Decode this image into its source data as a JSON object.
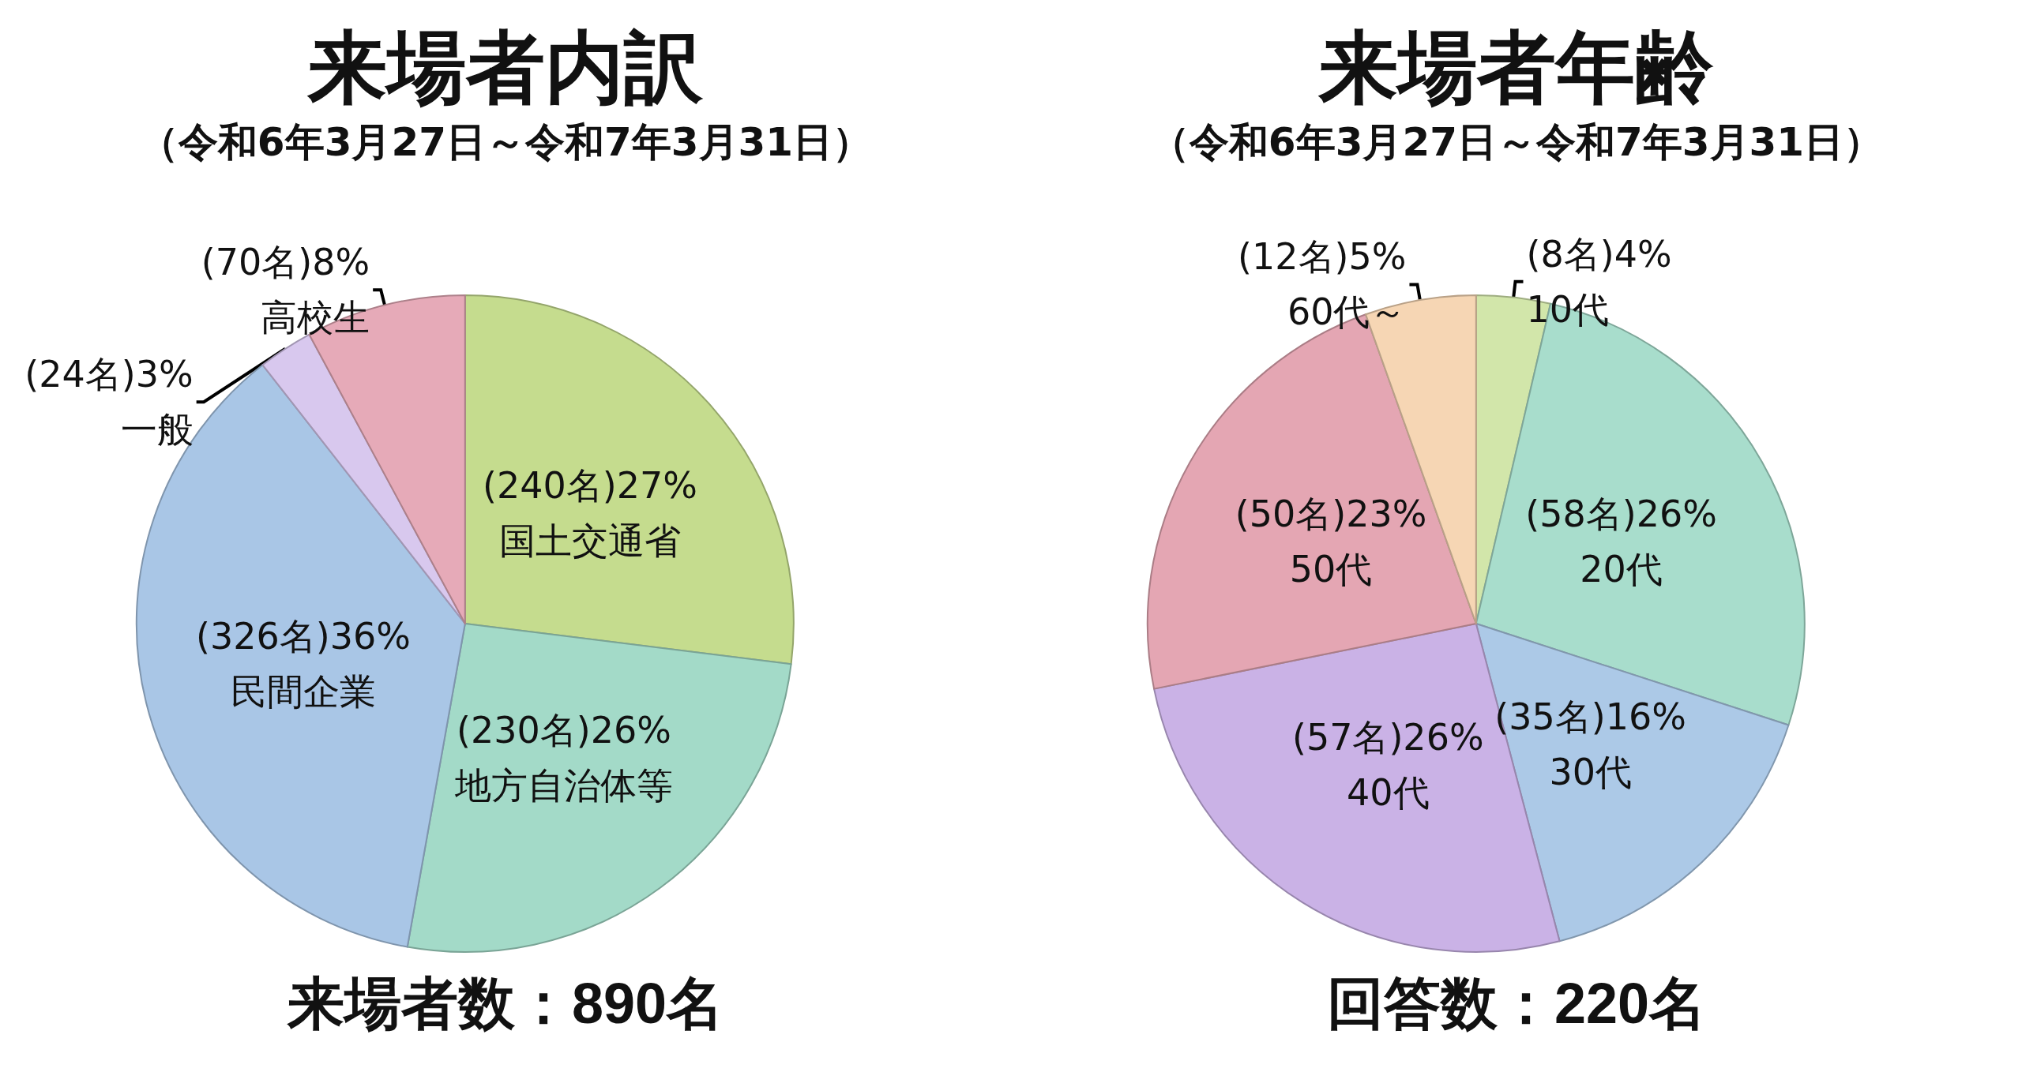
{
  "chart_data": [
    {
      "type": "pie",
      "title": "来場者内訳",
      "subtitle": "（令和6年3月27日～令和7年3月31日）",
      "categories": [
        "国土交通省",
        "地方自治体等",
        "民間企業",
        "一般",
        "高校生"
      ],
      "values": [
        240,
        230,
        326,
        24,
        70
      ],
      "value_labels": [
        "(240名)27%",
        "(230名)26%",
        "(326名)36%",
        "(24名)3%",
        "(70名)8%"
      ],
      "colors": [
        "#c5dc8e",
        "#a3dac8",
        "#a9c6e6",
        "#d8c8ee",
        "#e6aab8"
      ],
      "annotations": [
        "来場者数：890名"
      ],
      "legend": false
    },
    {
      "type": "pie",
      "title": "来場者年齢",
      "subtitle": "（令和6年3月27日～令和7年3月31日）",
      "categories": [
        "10代",
        "20代",
        "30代",
        "40代",
        "50代",
        "60代～"
      ],
      "values": [
        8,
        58,
        35,
        57,
        50,
        12
      ],
      "value_labels": [
        "(8名)4%",
        "(58名)26%",
        "(35名)16%",
        "(57名)26%",
        "(50名)23%",
        "(12名)5%"
      ],
      "colors": [
        "#d2e6aa",
        "#a8ddcc",
        "#acc9e7",
        "#cab2e6",
        "#e4a6b3",
        "#f6d6b4"
      ],
      "annotations": [
        "回答数：220名"
      ],
      "legend": false
    }
  ]
}
